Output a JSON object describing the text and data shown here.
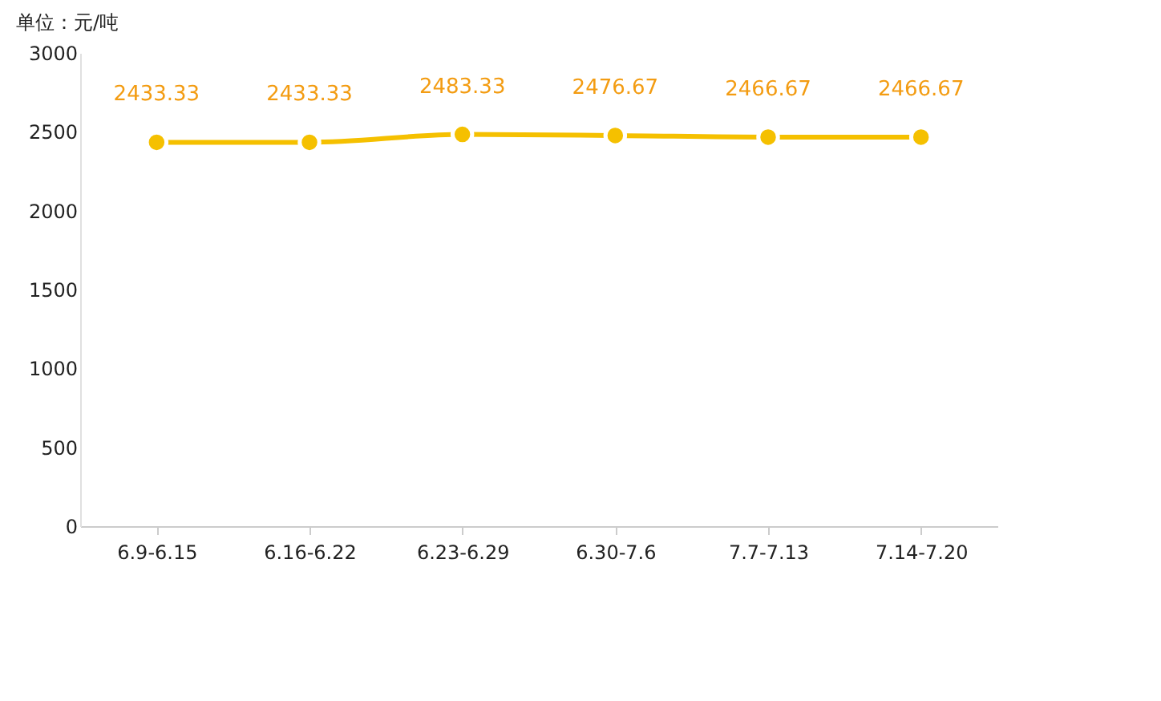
{
  "chart_data": {
    "type": "line",
    "ylabel": "单位：元/吨",
    "categories": [
      "6.9-6.15",
      "6.16-6.22",
      "6.23-6.29",
      "6.30-7.6",
      "7.7-7.13",
      "7.14-7.20"
    ],
    "series": [
      {
        "color": "#f5c000",
        "values": [
          2433.33,
          2433.33,
          2483.33,
          2476.67,
          2466.67,
          2466.67
        ]
      }
    ],
    "ylim": [
      0,
      3000
    ],
    "yticks": [
      0,
      500,
      1000,
      1500,
      2000,
      2500,
      3000
    ],
    "grid": false,
    "marker": "circle",
    "line_style": "solid",
    "data_labels": true
  }
}
